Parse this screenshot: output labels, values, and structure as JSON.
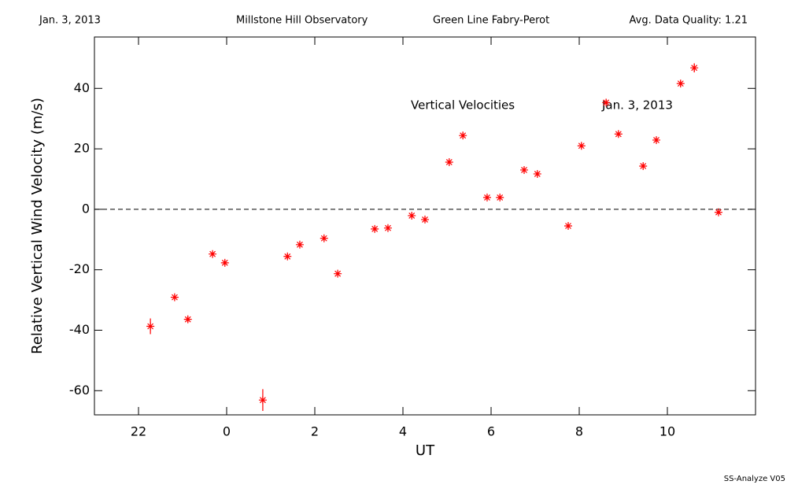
{
  "chart_data": {
    "type": "scatter",
    "header": [
      "Jan. 3, 2013",
      "Millstone Hill Observatory",
      "Green Line Fabry-Perot",
      "Avg. Data Quality: 1.21"
    ],
    "annotations": [
      "Vertical Velocities",
      "Jan. 3, 2013"
    ],
    "footer": "SS-Analyze V05",
    "x_label": "UT",
    "y_label": "Relative Vertical Wind Velocity (m/s)",
    "xlim": [
      -3,
      12
    ],
    "xticks": [
      {
        "value": -2,
        "label": "22"
      },
      0,
      2,
      4,
      6,
      8,
      10
    ],
    "ylim": [
      -68,
      57
    ],
    "yticks": [
      -60,
      -40,
      -20,
      0,
      20,
      40
    ],
    "reference_line": 0,
    "color": "#ff0000",
    "x": [
      -1.73,
      -1.18,
      -0.88,
      -0.32,
      -0.04,
      0.82,
      1.38,
      1.66,
      2.21,
      2.52,
      3.36,
      3.66,
      4.2,
      4.5,
      5.05,
      5.36,
      5.91,
      6.2,
      6.75,
      7.05,
      7.75,
      8.05,
      8.61,
      8.89,
      9.45,
      9.75,
      10.3,
      10.61,
      11.16
    ],
    "values": [
      -38.7,
      -29.1,
      -36.4,
      -14.8,
      -17.7,
      -63.1,
      -15.6,
      -11.7,
      -9.6,
      -21.3,
      -6.5,
      -6.2,
      -2.1,
      -3.4,
      15.6,
      24.4,
      3.9,
      3.9,
      13.0,
      11.7,
      -5.5,
      21.0,
      35.3,
      24.9,
      14.3,
      22.9,
      41.6,
      46.8,
      -1.0
    ],
    "errors": [
      2.6,
      1.0,
      1.0,
      0.8,
      0.8,
      3.6,
      0.8,
      0.8,
      0.8,
      0.8,
      0.8,
      0.8,
      0.8,
      0.8,
      0.8,
      1.0,
      0.8,
      0.8,
      0.8,
      0.8,
      0.8,
      0.8,
      1.0,
      0.8,
      0.8,
      0.8,
      1.0,
      1.5,
      0.8
    ]
  }
}
